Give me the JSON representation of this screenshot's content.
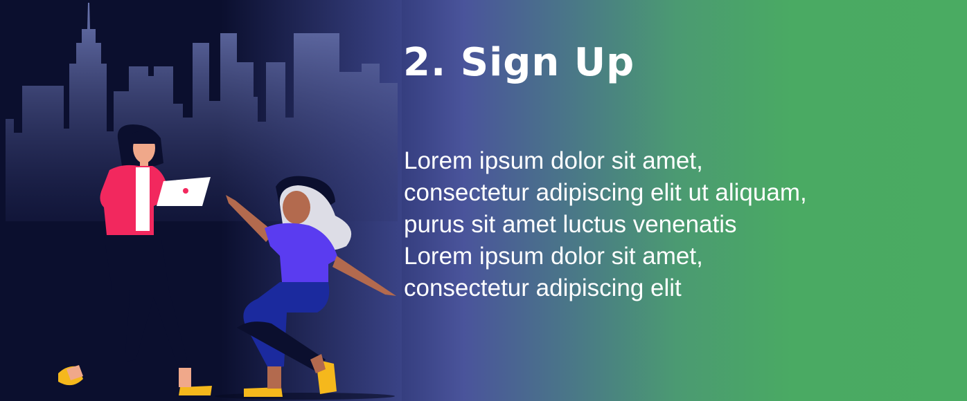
{
  "slide": {
    "title": "2. Sign Up",
    "paragraphs": [
      "Lorem ipsum dolor sit amet, consectetur adipiscing elit ut aliquam, purus sit amet luctus venenatis",
      "Lorem ipsum dolor sit amet, consectetur adipiscing elit"
    ]
  },
  "illustration": {
    "name": "city-skyline-with-two-people",
    "colors": {
      "background": "#0b0f2e",
      "buildings": "#5e6aa8",
      "jacket": "#f2285e",
      "shirt": "#5a3cf0",
      "pants": "#1b2a9e",
      "shoes": "#f5b81c"
    }
  }
}
